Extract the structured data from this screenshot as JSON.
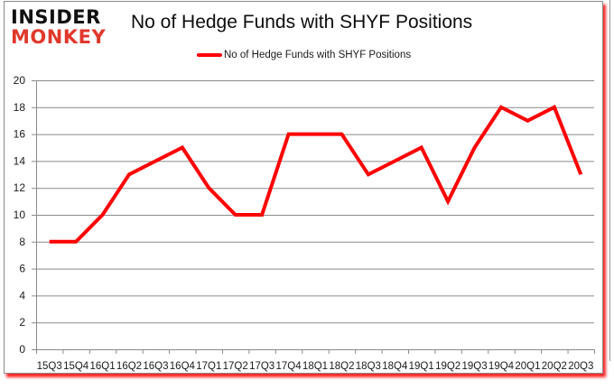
{
  "logo": {
    "line1": "INSIDER",
    "line2": "MONKEY"
  },
  "title": "No of Hedge Funds with SHYF Positions",
  "legend": {
    "label": "No of Hedge Funds with SHYF Positions",
    "color": "#ff0000"
  },
  "chart_data": {
    "type": "line",
    "title": "No of Hedge Funds with SHYF Positions",
    "xlabel": "",
    "ylabel": "",
    "ylim": [
      0,
      20
    ],
    "yticks": [
      0,
      2,
      4,
      6,
      8,
      10,
      12,
      14,
      16,
      18,
      20
    ],
    "grid": true,
    "legend_position": "top",
    "categories": [
      "15Q3",
      "15Q4",
      "16Q1",
      "16Q2",
      "16Q3",
      "16Q4",
      "17Q1",
      "17Q2",
      "17Q3",
      "17Q4",
      "18Q1",
      "18Q2",
      "18Q3",
      "18Q4",
      "19Q1",
      "19Q2",
      "19Q3",
      "19Q4",
      "20Q1",
      "20Q2",
      "20Q3"
    ],
    "series": [
      {
        "name": "No of Hedge Funds with SHYF Positions",
        "color": "#ff0000",
        "values": [
          8,
          8,
          10,
          13,
          14,
          15,
          12,
          10,
          10,
          16,
          16,
          16,
          13,
          14,
          15,
          11,
          15,
          18,
          17,
          18,
          13
        ]
      }
    ]
  }
}
